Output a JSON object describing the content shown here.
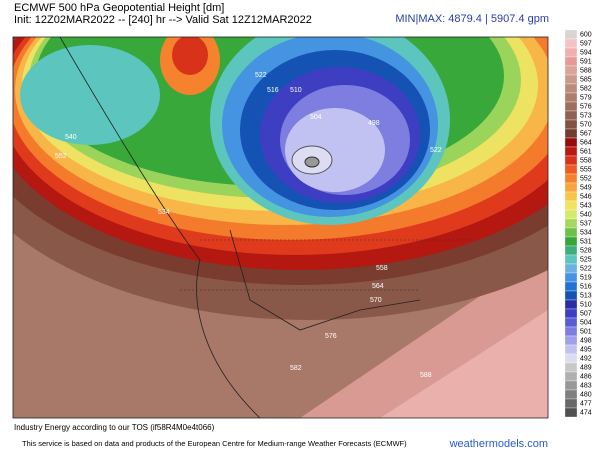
{
  "header": {
    "title": "ECMWF 500 hPa Geopotential Height [dm]",
    "init": "Init: 12Z02MAR2022 -- [240] hr --> Valid Sat 12Z12MAR2022",
    "minmax": "MIN|MAX: 4879.4 | 5907.4 gpm"
  },
  "colorbar": {
    "entries": [
      {
        "label": "600",
        "color": "#d9d3d3"
      },
      {
        "label": "597",
        "color": "#f2c4c4"
      },
      {
        "label": "594",
        "color": "#eeb0b0"
      },
      {
        "label": "591",
        "color": "#e89a9a"
      },
      {
        "label": "588",
        "color": "#d9a596"
      },
      {
        "label": "585",
        "color": "#c99a8a"
      },
      {
        "label": "582",
        "color": "#bc8b7b"
      },
      {
        "label": "579",
        "color": "#ae7d6d"
      },
      {
        "label": "576",
        "color": "#a06e5f"
      },
      {
        "label": "573",
        "color": "#916052"
      },
      {
        "label": "570",
        "color": "#825245"
      },
      {
        "label": "567",
        "color": "#743c30"
      },
      {
        "label": "564",
        "color": "#9a0c0c"
      },
      {
        "label": "561",
        "color": "#bb1a12"
      },
      {
        "label": "558",
        "color": "#d9321a"
      },
      {
        "label": "555",
        "color": "#ee5a22"
      },
      {
        "label": "552",
        "color": "#f6822e"
      },
      {
        "label": "549",
        "color": "#f9a53c"
      },
      {
        "label": "546",
        "color": "#f8c64c"
      },
      {
        "label": "543",
        "color": "#f2e25e"
      },
      {
        "label": "540",
        "color": "#d6ea6a"
      },
      {
        "label": "537",
        "color": "#a4d85e"
      },
      {
        "label": "534",
        "color": "#6cc248"
      },
      {
        "label": "531",
        "color": "#36a638"
      },
      {
        "label": "528",
        "color": "#3fae7c"
      },
      {
        "label": "525",
        "color": "#5cc6be"
      },
      {
        "label": "522",
        "color": "#6ab2e2"
      },
      {
        "label": "519",
        "color": "#4494e2"
      },
      {
        "label": "516",
        "color": "#2272d4"
      },
      {
        "label": "513",
        "color": "#1452b4"
      },
      {
        "label": "510",
        "color": "#2a2ea2"
      },
      {
        "label": "507",
        "color": "#3e3ec2"
      },
      {
        "label": "504",
        "color": "#5c5cd2"
      },
      {
        "label": "501",
        "color": "#7e7ee0"
      },
      {
        "label": "498",
        "color": "#a0a0ea"
      },
      {
        "label": "495",
        "color": "#c2c2f2"
      },
      {
        "label": "492",
        "color": "#dcdcf2"
      },
      {
        "label": "489",
        "color": "#c8c8c8"
      },
      {
        "label": "486",
        "color": "#b0b0b0"
      },
      {
        "label": "483",
        "color": "#989898"
      },
      {
        "label": "480",
        "color": "#808080"
      },
      {
        "label": "477",
        "color": "#686868"
      },
      {
        "label": "474",
        "color": "#505050"
      }
    ]
  },
  "map": {
    "contour_labels": [
      "522",
      "516",
      "510",
      "504",
      "498",
      "540",
      "552",
      "534",
      "558",
      "564",
      "570",
      "576",
      "582",
      "588",
      "522"
    ]
  },
  "footer": {
    "tos": "Industry Energy according to our TOS (if58R4M0e4t066)",
    "source": "This service is based on data and products of the European Centre for Medium-range Weather Forecasts (ECMWF)",
    "brand": "weathermodels.com"
  }
}
